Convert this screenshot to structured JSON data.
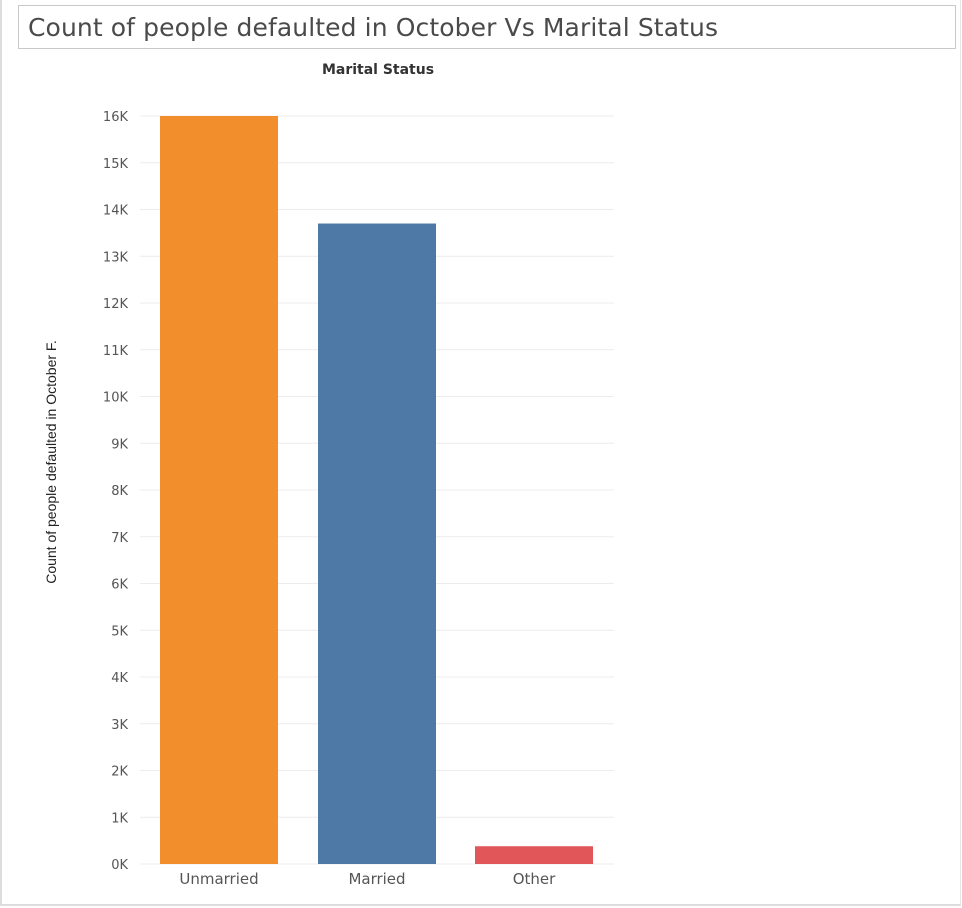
{
  "title": "Count of people defaulted in October Vs Marital Status",
  "chart_data": {
    "type": "bar",
    "column_header": "Marital Status",
    "ylabel": "Count of people defaulted in October F.",
    "categories": [
      "Unmarried",
      "Married",
      "Other"
    ],
    "values": [
      16000,
      13700,
      380
    ],
    "colors": [
      "#f28e2b",
      "#4e79a7",
      "#e15759"
    ],
    "ylim": [
      0,
      16000
    ],
    "yticks": [
      0,
      1000,
      2000,
      3000,
      4000,
      5000,
      6000,
      7000,
      8000,
      9000,
      10000,
      11000,
      12000,
      13000,
      14000,
      15000,
      16000
    ],
    "ytick_labels": [
      "0K",
      "1K",
      "2K",
      "3K",
      "4K",
      "5K",
      "6K",
      "7K",
      "8K",
      "9K",
      "10K",
      "11K",
      "12K",
      "13K",
      "14K",
      "15K",
      "16K"
    ],
    "grid": true,
    "legend": "none"
  }
}
